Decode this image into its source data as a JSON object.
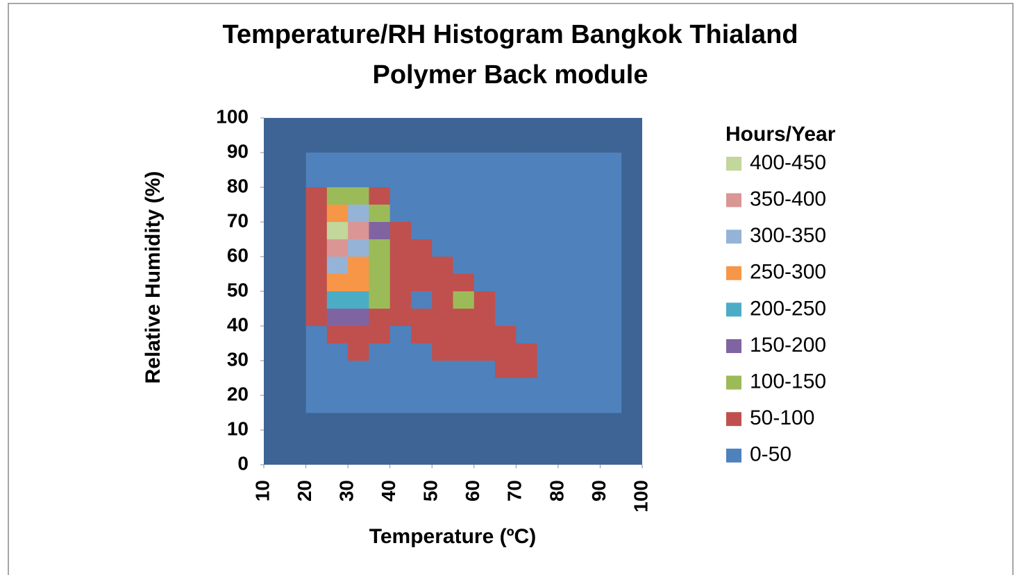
{
  "chart_data": {
    "type": "contour",
    "title": [
      "Temperature/RH Histogram Bangkok Thialand",
      "Polymer Back module"
    ],
    "x_label": "Temperature (ºC)",
    "y_label": "Relative Humidity  (%)",
    "legend_title": "Hours/Year",
    "xlim": [
      10,
      100
    ],
    "xticks": [
      10,
      20,
      30,
      40,
      50,
      60,
      70,
      80,
      90,
      100
    ],
    "ylim": [
      0,
      100
    ],
    "yticks": [
      0,
      10,
      20,
      30,
      40,
      50,
      60,
      70,
      80,
      90,
      100
    ],
    "background": "#3d6494",
    "x": [
      20,
      25,
      30,
      35,
      40,
      45,
      50,
      55,
      60,
      65,
      70,
      75,
      80,
      85,
      90
    ],
    "y": [
      85,
      80,
      75,
      70,
      65,
      60,
      55,
      50,
      45,
      40,
      35,
      30,
      25,
      20,
      15
    ],
    "z": [
      [
        5,
        10,
        5,
        0,
        0,
        0,
        0,
        0,
        0,
        0,
        0,
        0,
        0,
        0,
        0
      ],
      [
        20,
        40,
        30,
        10,
        0,
        0,
        0,
        0,
        0,
        0,
        0,
        0,
        0,
        0,
        0
      ],
      [
        60,
        120,
        110,
        60,
        10,
        0,
        0,
        0,
        0,
        0,
        0,
        0,
        0,
        0,
        0
      ],
      [
        70,
        250,
        300,
        120,
        20,
        5,
        0,
        0,
        0,
        0,
        0,
        0,
        0,
        0,
        0
      ],
      [
        80,
        400,
        350,
        150,
        70,
        20,
        5,
        0,
        0,
        0,
        0,
        0,
        0,
        0,
        0
      ],
      [
        90,
        380,
        330,
        140,
        80,
        60,
        30,
        5,
        0,
        0,
        0,
        0,
        0,
        0,
        0
      ],
      [
        80,
        300,
        280,
        120,
        60,
        70,
        60,
        20,
        5,
        0,
        0,
        0,
        0,
        0,
        0
      ],
      [
        70,
        250,
        250,
        110,
        50,
        60,
        70,
        60,
        20,
        5,
        0,
        0,
        0,
        0,
        0
      ],
      [
        60,
        200,
        200,
        100,
        60,
        40,
        60,
        120,
        70,
        20,
        5,
        0,
        0,
        0,
        0
      ],
      [
        50,
        150,
        150,
        70,
        60,
        60,
        70,
        80,
        70,
        40,
        10,
        0,
        0,
        0,
        0
      ],
      [
        30,
        80,
        90,
        60,
        30,
        60,
        60,
        70,
        80,
        70,
        30,
        5,
        0,
        0,
        0
      ],
      [
        10,
        40,
        60,
        30,
        10,
        20,
        60,
        90,
        70,
        70,
        60,
        20,
        5,
        0,
        0
      ],
      [
        5,
        10,
        20,
        20,
        10,
        10,
        20,
        30,
        40,
        60,
        55,
        30,
        10,
        5,
        0
      ],
      [
        0,
        5,
        5,
        10,
        5,
        5,
        10,
        10,
        20,
        20,
        20,
        20,
        10,
        5,
        0
      ],
      [
        0,
        0,
        0,
        5,
        5,
        5,
        5,
        5,
        5,
        5,
        5,
        5,
        5,
        5,
        0
      ]
    ],
    "bands": [
      {
        "label": "400-450",
        "range": [
          400,
          450
        ],
        "color": "#c3d69b"
      },
      {
        "label": "350-400",
        "range": [
          350,
          400
        ],
        "color": "#d99694"
      },
      {
        "label": "300-350",
        "range": [
          300,
          350
        ],
        "color": "#95b3d7"
      },
      {
        "label": "250-300",
        "range": [
          250,
          300
        ],
        "color": "#f79646"
      },
      {
        "label": "200-250",
        "range": [
          200,
          250
        ],
        "color": "#4bacc6"
      },
      {
        "label": "150-200",
        "range": [
          150,
          200
        ],
        "color": "#8064a2"
      },
      {
        "label": "100-150",
        "range": [
          100,
          150
        ],
        "color": "#9bbb59"
      },
      {
        "label": "50-100",
        "range": [
          50,
          100
        ],
        "color": "#c0504d"
      },
      {
        "label": "0-50",
        "range": [
          0,
          50
        ],
        "color": "#4f81bd"
      }
    ]
  }
}
